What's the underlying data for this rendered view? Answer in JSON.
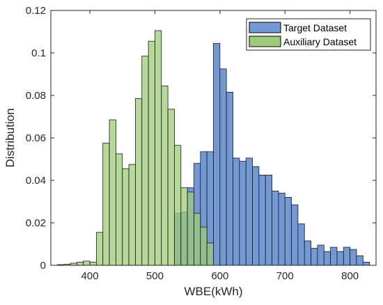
{
  "chart_data": {
    "type": "bar",
    "title": "",
    "xlabel": "WBE(kWh)",
    "ylabel": "Distribution",
    "xlim": [
      340,
      840
    ],
    "ylim": [
      0,
      0.12
    ],
    "xticks": [
      400,
      500,
      600,
      700,
      800
    ],
    "yticks": [
      0,
      0.02,
      0.04,
      0.06,
      0.08,
      0.1,
      0.12
    ],
    "ytick_labels": [
      "0",
      "0.02",
      "0.04",
      "0.06",
      "0.08",
      "0.1",
      "0.12"
    ],
    "grid": false,
    "legend_position": "top-right",
    "bin_width": 10,
    "series": [
      {
        "name": "Target Dataset",
        "color": "#7398d4",
        "bins": [
          [
            530,
            0.0245
          ],
          [
            540,
            0.025
          ],
          [
            550,
            0.0365
          ],
          [
            560,
            0.048
          ],
          [
            570,
            0.0535
          ],
          [
            580,
            0.0535
          ],
          [
            590,
            0.1045
          ],
          [
            600,
            0.0925
          ],
          [
            610,
            0.0815
          ],
          [
            620,
            0.0505
          ],
          [
            630,
            0.049
          ],
          [
            640,
            0.0505
          ],
          [
            650,
            0.0465
          ],
          [
            660,
            0.0425
          ],
          [
            670,
            0.0425
          ],
          [
            680,
            0.035
          ],
          [
            690,
            0.034
          ],
          [
            700,
            0.032
          ],
          [
            710,
            0.0285
          ],
          [
            720,
            0.0195
          ],
          [
            730,
            0.0115
          ],
          [
            740,
            0.008
          ],
          [
            750,
            0.0095
          ],
          [
            760,
            0.0065
          ],
          [
            770,
            0.0085
          ],
          [
            780,
            0.0065
          ],
          [
            790,
            0.0085
          ],
          [
            800,
            0.0075
          ],
          [
            810,
            0.0045
          ],
          [
            820,
            0.0015
          ]
        ]
      },
      {
        "name": "Auxiliary Dataset",
        "color": "#9ecb7a",
        "bins": [
          [
            350,
            0.0003
          ],
          [
            360,
            0.0005
          ],
          [
            370,
            0.001
          ],
          [
            380,
            0.0015
          ],
          [
            390,
            0.002
          ],
          [
            400,
            0.0015
          ],
          [
            410,
            0.0155
          ],
          [
            420,
            0.0575
          ],
          [
            430,
            0.0685
          ],
          [
            440,
            0.0525
          ],
          [
            450,
            0.0455
          ],
          [
            460,
            0.0475
          ],
          [
            470,
            0.0785
          ],
          [
            480,
            0.0985
          ],
          [
            490,
            0.1055
          ],
          [
            500,
            0.1105
          ],
          [
            510,
            0.0845
          ],
          [
            520,
            0.0735
          ],
          [
            530,
            0.0565
          ],
          [
            540,
            0.0365
          ],
          [
            550,
            0.0345
          ],
          [
            560,
            0.0245
          ],
          [
            570,
            0.018
          ],
          [
            580,
            0.0105
          ]
        ]
      }
    ]
  }
}
